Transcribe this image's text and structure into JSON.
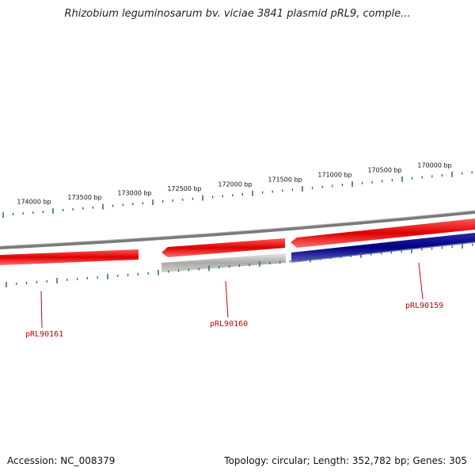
{
  "title": "Rhizobium leguminosarum bv. viciae 3841 plasmid pRL9, comple...",
  "footer": {
    "accession": "Accession: NC_008379",
    "summary": "Topology: circular; Length: 352,782 bp; Genes: 305"
  },
  "scale": {
    "labels": [
      "174000 bp",
      "173500 bp",
      "173000 bp",
      "172500 bp",
      "172000 bp",
      "171500 bp",
      "171000 bp",
      "170500 bp",
      "170000 bp"
    ],
    "color": "#1a7a1a"
  },
  "genes": [
    {
      "name": "pRL90161",
      "strand": "forward",
      "color": "#dd0000"
    },
    {
      "name": "pRL90160",
      "strand": "forward",
      "color": "#dd0000"
    },
    {
      "name": "pRL90160",
      "strand": "reverse",
      "color": "#aaaaaa"
    },
    {
      "name": "pRL90159",
      "strand": "forward",
      "color": "#dd0000"
    },
    {
      "name": "pRL90159",
      "strand": "reverse",
      "color": "#000080"
    }
  ],
  "gene_labels": [
    "pRL90161",
    "pRL90160",
    "pRL90159"
  ],
  "colors": {
    "backbone": "#7a7a7a",
    "forward": "#dd0000",
    "reverse_gray": "#aaaaaa",
    "reverse_blue": "#000080",
    "label": "#cc0000"
  }
}
